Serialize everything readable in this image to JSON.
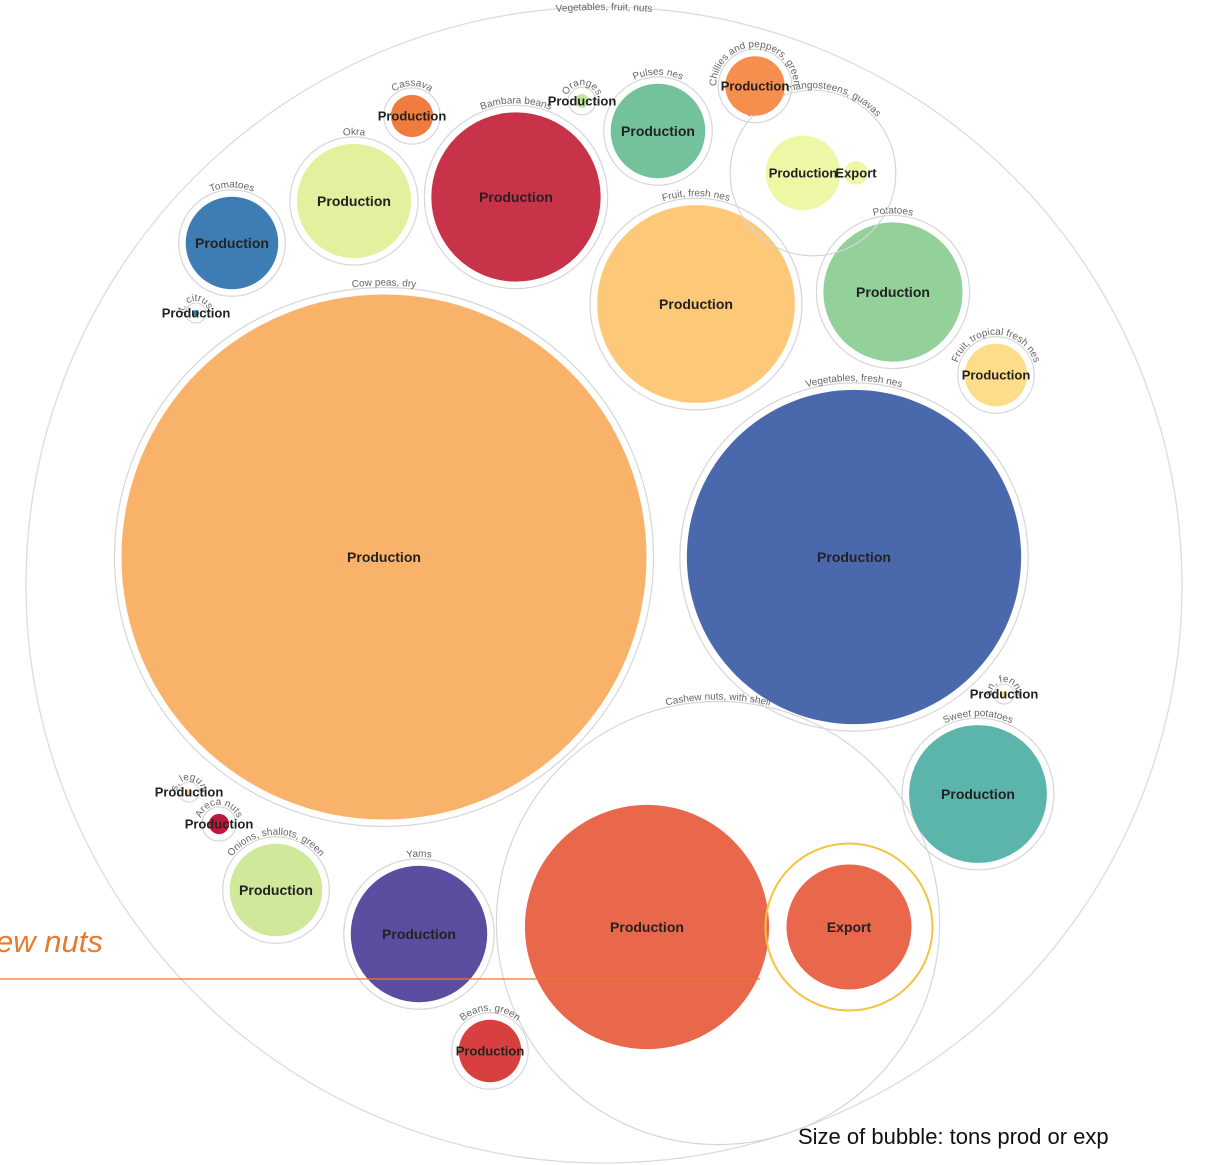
{
  "chart_data": {
    "type": "bubble",
    "root": "Vegetables, fruit, nuts",
    "highlight": {
      "category": "Cashew nuts, with shell",
      "series": "Export",
      "color": "#f5c242"
    },
    "annotation": "ew nuts",
    "size_note": "Size of bubble: tons prod or exp",
    "groups": [
      {
        "category": "Cow peas, dry",
        "bubbles": [
          {
            "series": "Production",
            "value": 74000,
            "color": "#f8b26a"
          }
        ]
      },
      {
        "category": "Vegetables, fresh nes",
        "bubbles": [
          {
            "series": "Production",
            "value": 30000,
            "color": "#4a69ad"
          }
        ]
      },
      {
        "category": "Cashew nuts, with shell",
        "bubbles": [
          {
            "series": "Production",
            "value": 16000,
            "color": "#e9674a"
          },
          {
            "series": "Export",
            "value": 4200,
            "color": "#e9674a"
          }
        ]
      },
      {
        "category": "Fruit, fresh nes",
        "bubbles": [
          {
            "series": "Production",
            "value": 10500,
            "color": "#fdc877"
          }
        ]
      },
      {
        "category": "Bambara beans",
        "bubbles": [
          {
            "series": "Production",
            "value": 7700,
            "color": "#c9334a"
          }
        ]
      },
      {
        "category": "Potatoes",
        "bubbles": [
          {
            "series": "Production",
            "value": 5200,
            "color": "#93d09a"
          }
        ]
      },
      {
        "category": "Sweet potatoes",
        "bubbles": [
          {
            "series": "Production",
            "value": 5100,
            "color": "#5cb5aa"
          }
        ]
      },
      {
        "category": "Yams",
        "bubbles": [
          {
            "series": "Production",
            "value": 5000,
            "color": "#5b4ea0"
          }
        ]
      },
      {
        "category": "Okra",
        "bubbles": [
          {
            "series": "Production",
            "value": 3500,
            "color": "#e3f09d"
          }
        ]
      },
      {
        "category": "Pulses nes",
        "bubbles": [
          {
            "series": "Production",
            "value": 2400,
            "color": "#74c29b"
          }
        ]
      },
      {
        "category": "Onions, shallots, green",
        "bubbles": [
          {
            "series": "Production",
            "value": 2300,
            "color": "#cfe89a"
          }
        ]
      },
      {
        "category": "Tomatoes",
        "bubbles": [
          {
            "series": "Production",
            "value": 2300,
            "color": "#3d7db3"
          }
        ]
      },
      {
        "category": "Mangoes, mangosteens, guavas",
        "bubbles": [
          {
            "series": "Production",
            "value": 1500,
            "color": "#eef7a6"
          },
          {
            "series": "Export",
            "value": 150,
            "color": "#eef7a6"
          }
        ]
      },
      {
        "category": "Fruit, tropical fresh nes",
        "bubbles": [
          {
            "series": "Production",
            "value": 1050,
            "color": "#fedd8a"
          }
        ]
      },
      {
        "category": "Beans, green",
        "bubbles": [
          {
            "series": "Production",
            "value": 1050,
            "color": "#d8403f"
          }
        ]
      },
      {
        "category": "Chillies and peppers, green",
        "bubbles": [
          {
            "series": "Production",
            "value": 950,
            "color": "#f68e4d"
          }
        ]
      },
      {
        "category": "Cassava",
        "bubbles": [
          {
            "series": "Production",
            "value": 480,
            "color": "#f07b3f"
          }
        ]
      },
      {
        "category": "Oranges",
        "bubbles": [
          {
            "series": "Production",
            "value": 50,
            "color": "#c3e69d"
          }
        ]
      },
      {
        "category": "Anise, badian, fennel, coriander",
        "bubbles": [
          {
            "series": "Production",
            "value": 10,
            "color": "#fbe08a"
          }
        ]
      },
      {
        "category": "Fruit, citrus nes",
        "bubbles": [
          {
            "series": "Production",
            "value": 10,
            "color": "#2e8fa8"
          }
        ]
      },
      {
        "category": "Vegetables, leguminous nes",
        "bubbles": [
          {
            "series": "Production",
            "value": 10,
            "color": "#f6c98b"
          }
        ]
      },
      {
        "category": "Areca nuts",
        "bubbles": [
          {
            "series": "Production",
            "value": 110,
            "color": "#c0173f"
          }
        ]
      }
    ]
  }
}
